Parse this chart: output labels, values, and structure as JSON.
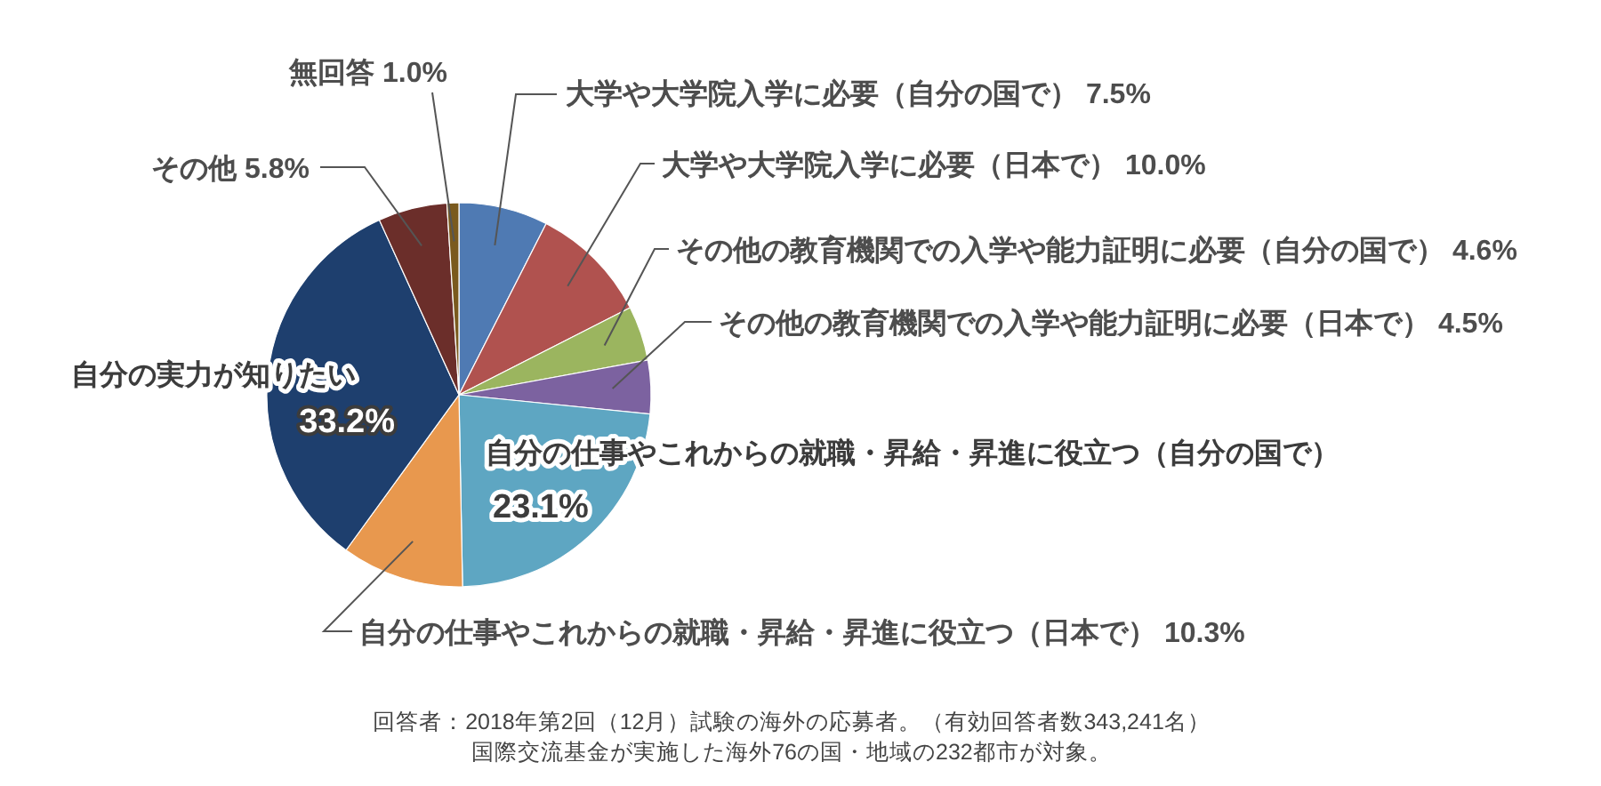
{
  "chart_data": {
    "type": "pie",
    "categories": [
      "大学や大学院入学に必要（自分の国で）",
      "大学や大学院入学に必要（日本で）",
      "その他の教育機関での入学や能力証明に必要（自分の国で）",
      "その他の教育機関での入学や能力証明に必要（日本で）",
      "自分の仕事やこれからの就職・昇給・昇進に役立つ（自分の国で）",
      "自分の仕事やこれからの就職・昇給・昇進に役立つ（日本で）",
      "自分の実力が知りたい",
      "その他",
      "無回答"
    ],
    "values": [
      7.5,
      10.0,
      4.6,
      4.5,
      23.1,
      10.3,
      33.2,
      5.8,
      1.0
    ],
    "colors": [
      "#4f7ab3",
      "#b0524f",
      "#9bb55f",
      "#7c62a0",
      "#5ea6c2",
      "#e8984e",
      "#1e3f6e",
      "#6b2e2a",
      "#7a5a1e"
    ],
    "value_labels": [
      "7.5%",
      "10.0%",
      "4.6%",
      "4.5%",
      "23.1%",
      "10.3%",
      "33.2%",
      "5.8%",
      "1.0%"
    ],
    "annotations": [
      "回答者：2018年第2回（12月）試験の海外の応募者。（有効回答者数343,241名）",
      "国際交流基金が実施した海外76の国・地域の232都市が対象。"
    ]
  }
}
